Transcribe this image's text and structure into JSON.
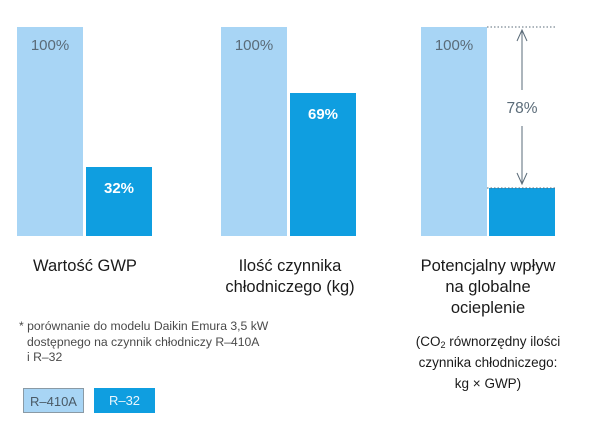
{
  "colors": {
    "r410a": "#a8d5f5",
    "r32": "#0f9ee0",
    "arrow": "#5a6b78",
    "legend_border": "#8a9aa5"
  },
  "chart_data": {
    "type": "bar",
    "categories": [
      "Wartość GWP",
      "Ilość czynnika chłodniczego (kg)",
      "Potencjalny wpływ na globalne ocieplenie"
    ],
    "series": [
      {
        "name": "R–410A",
        "values": [
          100,
          100,
          100
        ],
        "labels": [
          "100%",
          "100%",
          "100%"
        ]
      },
      {
        "name": "R–32",
        "values": [
          32,
          69,
          22
        ],
        "labels": [
          "32%",
          "69%",
          ""
        ]
      }
    ],
    "ylim": [
      0,
      100
    ],
    "annotation": {
      "text": "78%",
      "category_index": 2
    }
  },
  "groups": [
    {
      "label_lines": [
        "Wartość GWP"
      ]
    },
    {
      "label_lines": [
        "Ilość czynnika",
        "chłodniczego (kg)"
      ]
    },
    {
      "label_lines": [
        "Potencjalny wpływ",
        "na globalne",
        "ocieplenie"
      ]
    }
  ],
  "formula": {
    "prefix": "(CO",
    "sub": "2",
    "line1_rest": " równorzędny ilości",
    "line2": "czynnika chłodniczego:",
    "line3": "kg × GWP)"
  },
  "footnote": {
    "lines": [
      "* porównanie do modelu Daikin Emura 3,5 kW",
      "dostępnego na czynnik chłodniczy R–410A",
      "i R–32"
    ]
  },
  "legend": [
    {
      "label": "R–410A"
    },
    {
      "label": "R–32"
    }
  ]
}
